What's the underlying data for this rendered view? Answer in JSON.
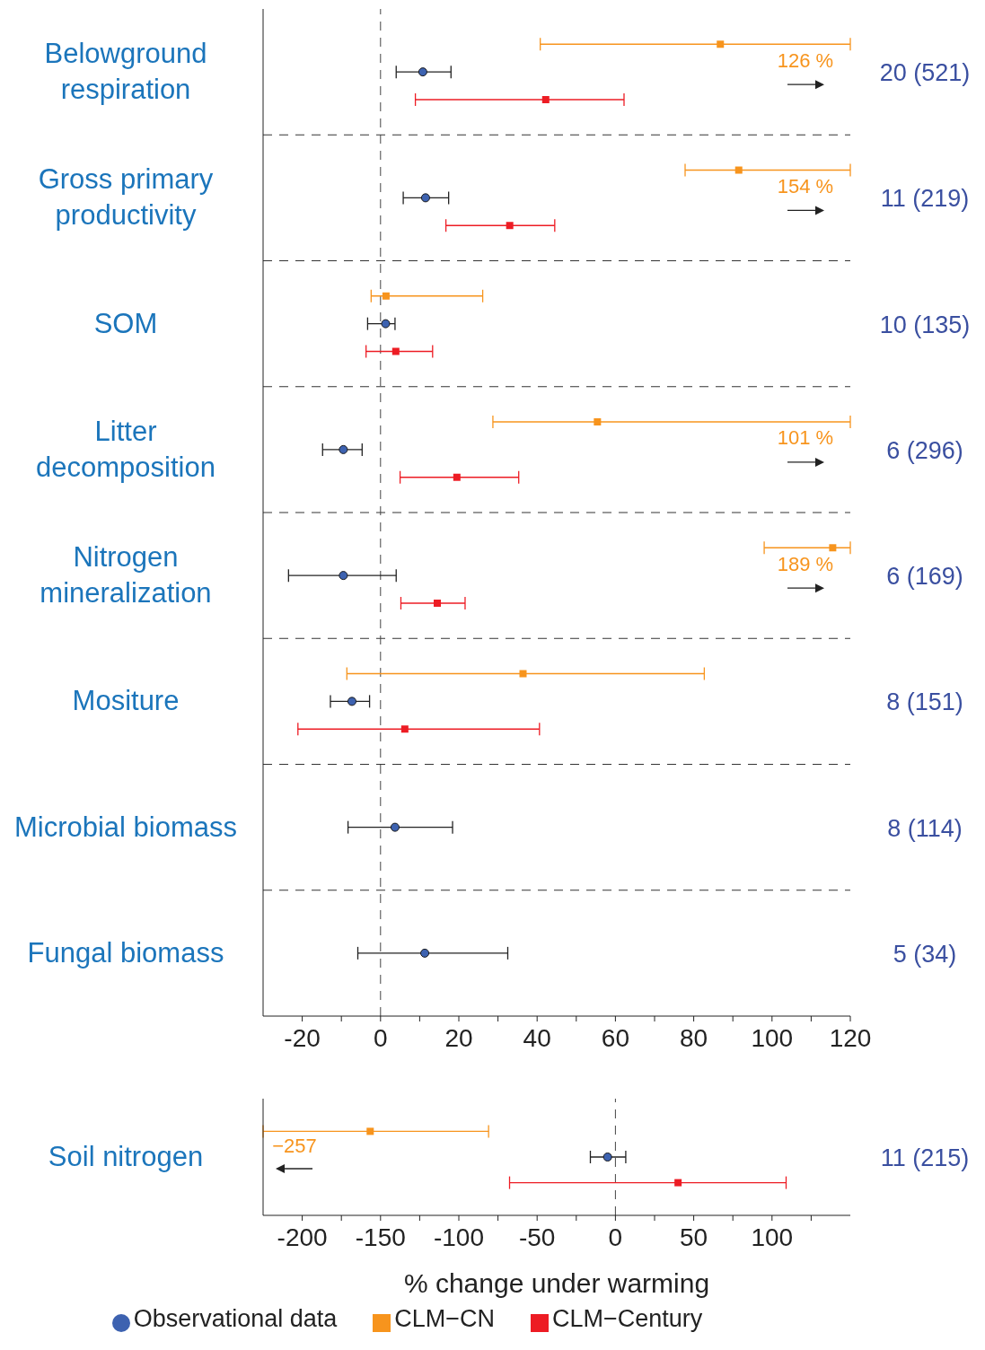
{
  "chart_data": [
    {
      "type": "scatter",
      "orientation": "horizontal",
      "categories": [
        "Belowground respiration",
        "Gross primary productivity",
        "SOM",
        "Litter decomposition",
        "Nitrogen mineralization",
        "Mositure",
        "Microbial biomass",
        "Fungal biomass"
      ],
      "series": [
        {
          "color": "#3d62b0",
          "marker": "circle",
          "values": [
            10.8,
            11.5,
            1.3,
            -9.5,
            -9.5,
            -7.3,
            3.7,
            11.3
          ],
          "errors": [
            [
              4.0,
              18.0
            ],
            [
              5.8,
              17.4
            ],
            [
              -3.3,
              3.7
            ],
            [
              -14.8,
              -4.7
            ],
            [
              -23.5,
              4.0
            ],
            [
              -12.8,
              -2.8
            ],
            [
              -8.3,
              18.4
            ],
            [
              -5.8,
              32.5
            ]
          ]
        },
        {
          "color": "#f7941d",
          "marker": "square",
          "values": [
            86.8,
            91.5,
            1.4,
            55.4,
            115.5,
            36.4,
            null,
            null
          ],
          "errors": [
            [
              40.8,
              120
            ],
            [
              77.8,
              120
            ],
            [
              -2.4,
              26.1
            ],
            [
              28.7,
              120
            ],
            [
              98.0,
              120
            ],
            [
              -8.6,
              82.7
            ],
            null,
            null
          ]
        },
        {
          "color": "#ed1c24",
          "marker": "square",
          "values": [
            42.2,
            33.0,
            3.9,
            19.5,
            14.5,
            6.2,
            null,
            null
          ],
          "errors": [
            [
              8.9,
              62.2
            ],
            [
              16.7,
              44.5
            ],
            [
              -3.7,
              13.3
            ],
            [
              5.0,
              35.3
            ],
            [
              5.2,
              21.6
            ],
            [
              -21.1,
              40.6
            ],
            null,
            null
          ]
        }
      ],
      "xlim": [
        -30,
        120
      ],
      "xticks": [
        -20,
        {
          "value": -10,
          "label": null
        },
        0,
        {
          "value": 10,
          "label": null
        },
        20,
        {
          "value": 30,
          "label": null
        },
        40,
        {
          "value": 50,
          "label": null
        },
        60,
        {
          "value": 70,
          "label": null
        },
        80,
        {
          "value": 90,
          "label": null
        },
        100,
        {
          "value": 110,
          "label": null
        },
        120
      ],
      "grid": "y",
      "legend": false,
      "ref_lines": [
        {
          "axis": "x",
          "value": 0,
          "line_style": "dashed"
        }
      ],
      "y2_categories": [
        "20 (521)",
        "11 (219)",
        "10 (135)",
        "6 (296)",
        "6 (169)",
        "8 (151)",
        "8 (114)",
        "5 (34)"
      ],
      "annotations": [
        "126 %",
        "154 %",
        "101 %",
        "189 %"
      ]
    },
    {
      "type": "scatter",
      "orientation": "horizontal",
      "categories": [
        "Soil nitrogen"
      ],
      "xlabel": "% change under warming",
      "series": [
        {
          "name": "Observational data",
          "color": "#3d62b0",
          "marker": "circle",
          "values": [
            -5
          ],
          "errors": [
            [
              -16,
              6.6
            ]
          ]
        },
        {
          "name": "CLM−CN",
          "color": "#f7941d",
          "marker": "square",
          "values": [
            -156.6
          ],
          "errors": [
            [
              -225,
              -81
            ]
          ]
        },
        {
          "name": "CLM−Century",
          "color": "#ed1c24",
          "marker": "square",
          "values": [
            40
          ],
          "errors": [
            [
              -67.6,
              109
            ]
          ]
        }
      ],
      "xlim": [
        -225,
        150
      ],
      "xticks": [
        -200,
        {
          "value": -175,
          "label": null
        },
        -150,
        {
          "value": -125,
          "label": null
        },
        -100,
        {
          "value": -75,
          "label": null
        },
        -50,
        {
          "value": -25,
          "label": null
        },
        0,
        {
          "value": 25,
          "label": null
        },
        50,
        {
          "value": 75,
          "label": null
        },
        100,
        {
          "value": 125,
          "label": null
        }
      ],
      "grid": false,
      "legend": "bottom",
      "ref_lines": [
        {
          "axis": "x",
          "value": 0,
          "line_style": "dashed"
        }
      ],
      "y2_categories": [
        "11 (215)"
      ],
      "annotations": [
        "−257"
      ]
    }
  ]
}
